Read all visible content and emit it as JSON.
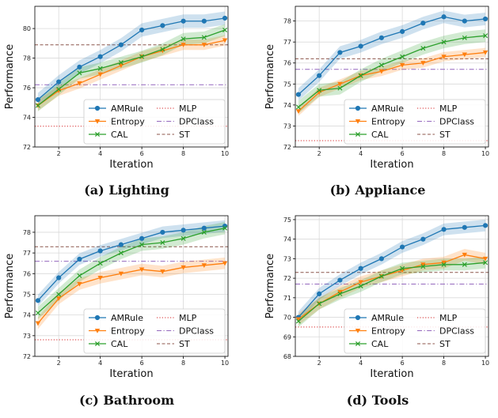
{
  "chart_data": [
    {
      "type": "line",
      "caption": "(a) Lighting",
      "xlabel": "Iteration",
      "ylabel": "Performance",
      "xlim": [
        0.85,
        10.15
      ],
      "ylim": [
        72,
        81.5
      ],
      "xticks": [
        2,
        4,
        6,
        8,
        10
      ],
      "yticks": [
        72,
        74,
        76,
        78,
        80
      ],
      "grid": true,
      "x": [
        1,
        2,
        3,
        4,
        5,
        6,
        7,
        8,
        9,
        10
      ],
      "series": [
        {
          "name": "AMRule",
          "color": "#1f77b4",
          "marker": "circle",
          "values": [
            75.2,
            76.4,
            77.4,
            78.1,
            78.9,
            79.9,
            80.2,
            80.5,
            80.5,
            80.7
          ],
          "band": 0.45
        },
        {
          "name": "Entropy",
          "color": "#ff7f0e",
          "marker": "triangle-down",
          "values": [
            74.8,
            75.8,
            76.3,
            76.9,
            77.5,
            78.1,
            78.5,
            78.9,
            78.9,
            79.2
          ],
          "band": 0.35
        },
        {
          "name": "CAL",
          "color": "#2ca02c",
          "marker": "x",
          "values": [
            74.8,
            75.9,
            77.0,
            77.3,
            77.7,
            78.1,
            78.6,
            79.3,
            79.4,
            79.9
          ],
          "band": 0.4
        }
      ],
      "baselines": [
        {
          "name": "MLP",
          "color": "#d62728",
          "dash": "dotted",
          "value": 73.4
        },
        {
          "name": "DPClass",
          "color": "#9467bd",
          "dash": "dashdot",
          "value": 76.2
        },
        {
          "name": "ST",
          "color": "#8c564b",
          "dash": "dashed",
          "value": 78.9
        }
      ]
    },
    {
      "type": "line",
      "caption": "(b) Appliance",
      "xlabel": "Iteration",
      "ylabel": "Performance",
      "xlim": [
        0.85,
        10.15
      ],
      "ylim": [
        72,
        78.7
      ],
      "xticks": [
        2,
        4,
        6,
        8,
        10
      ],
      "yticks": [
        72,
        73,
        74,
        75,
        76,
        77,
        78
      ],
      "grid": true,
      "x": [
        1,
        2,
        3,
        4,
        5,
        6,
        7,
        8,
        9,
        10
      ],
      "series": [
        {
          "name": "AMRule",
          "color": "#1f77b4",
          "marker": "circle",
          "values": [
            74.5,
            75.4,
            76.5,
            76.8,
            77.2,
            77.5,
            77.9,
            78.2,
            78.0,
            78.1
          ],
          "band": 0.3
        },
        {
          "name": "Entropy",
          "color": "#ff7f0e",
          "marker": "triangle-down",
          "values": [
            73.7,
            74.6,
            75.0,
            75.4,
            75.6,
            75.9,
            76.0,
            76.3,
            76.4,
            76.5
          ],
          "band": 0.22
        },
        {
          "name": "CAL",
          "color": "#2ca02c",
          "marker": "x",
          "values": [
            73.9,
            74.7,
            74.8,
            75.4,
            75.9,
            76.3,
            76.7,
            77.0,
            77.2,
            77.3
          ],
          "band": 0.3
        }
      ],
      "baselines": [
        {
          "name": "MLP",
          "color": "#d62728",
          "dash": "dotted",
          "value": 72.3
        },
        {
          "name": "DPClass",
          "color": "#9467bd",
          "dash": "dashdot",
          "value": 75.7
        },
        {
          "name": "ST",
          "color": "#8c564b",
          "dash": "dashed",
          "value": 76.2
        }
      ]
    },
    {
      "type": "line",
      "caption": "(c) Bathroom",
      "xlabel": "Iteration",
      "ylabel": "Performance",
      "xlim": [
        0.85,
        10.15
      ],
      "ylim": [
        72,
        78.8
      ],
      "xticks": [
        2,
        4,
        6,
        8,
        10
      ],
      "yticks": [
        72,
        73,
        74,
        75,
        76,
        77,
        78
      ],
      "grid": true,
      "x": [
        1,
        2,
        3,
        4,
        5,
        6,
        7,
        8,
        9,
        10
      ],
      "series": [
        {
          "name": "AMRule",
          "color": "#1f77b4",
          "marker": "circle",
          "values": [
            74.7,
            75.8,
            76.7,
            77.1,
            77.4,
            77.7,
            78.0,
            78.1,
            78.2,
            78.3
          ],
          "band": 0.28
        },
        {
          "name": "Entropy",
          "color": "#ff7f0e",
          "marker": "triangle-down",
          "values": [
            73.6,
            74.8,
            75.5,
            75.8,
            76.0,
            76.2,
            76.1,
            76.3,
            76.4,
            76.5
          ],
          "band": 0.28
        },
        {
          "name": "CAL",
          "color": "#2ca02c",
          "marker": "x",
          "values": [
            74.1,
            75.0,
            75.9,
            76.5,
            77.0,
            77.4,
            77.5,
            77.7,
            78.0,
            78.2
          ],
          "band": 0.3
        }
      ],
      "baselines": [
        {
          "name": "MLP",
          "color": "#d62728",
          "dash": "dotted",
          "value": 72.8
        },
        {
          "name": "DPClass",
          "color": "#9467bd",
          "dash": "dashdot",
          "value": 76.6
        },
        {
          "name": "ST",
          "color": "#8c564b",
          "dash": "dashed",
          "value": 77.3
        }
      ]
    },
    {
      "type": "line",
      "caption": "(d) Tools",
      "xlabel": "Iteration",
      "ylabel": "Performance",
      "xlim": [
        0.85,
        10.15
      ],
      "ylim": [
        68,
        75.2
      ],
      "xticks": [
        2,
        4,
        6,
        8,
        10
      ],
      "yticks": [
        68,
        69,
        70,
        71,
        72,
        73,
        74,
        75
      ],
      "grid": true,
      "x": [
        1,
        2,
        3,
        4,
        5,
        6,
        7,
        8,
        9,
        10
      ],
      "series": [
        {
          "name": "AMRule",
          "color": "#1f77b4",
          "marker": "circle",
          "values": [
            70.0,
            71.2,
            71.9,
            72.5,
            73.0,
            73.6,
            74.0,
            74.5,
            74.6,
            74.7
          ],
          "band": 0.3
        },
        {
          "name": "Entropy",
          "color": "#ff7f0e",
          "marker": "triangle-down",
          "values": [
            69.9,
            70.7,
            71.3,
            71.8,
            72.1,
            72.4,
            72.7,
            72.8,
            73.2,
            73.0
          ],
          "band": 0.3
        },
        {
          "name": "CAL",
          "color": "#2ca02c",
          "marker": "x",
          "values": [
            69.8,
            70.7,
            71.2,
            71.6,
            72.1,
            72.5,
            72.6,
            72.7,
            72.7,
            72.8
          ],
          "band": 0.3
        }
      ],
      "baselines": [
        {
          "name": "MLP",
          "color": "#d62728",
          "dash": "dotted",
          "value": 69.5
        },
        {
          "name": "DPClass",
          "color": "#9467bd",
          "dash": "dashdot",
          "value": 71.7
        },
        {
          "name": "ST",
          "color": "#8c564b",
          "dash": "dashed",
          "value": 72.3
        }
      ]
    }
  ]
}
